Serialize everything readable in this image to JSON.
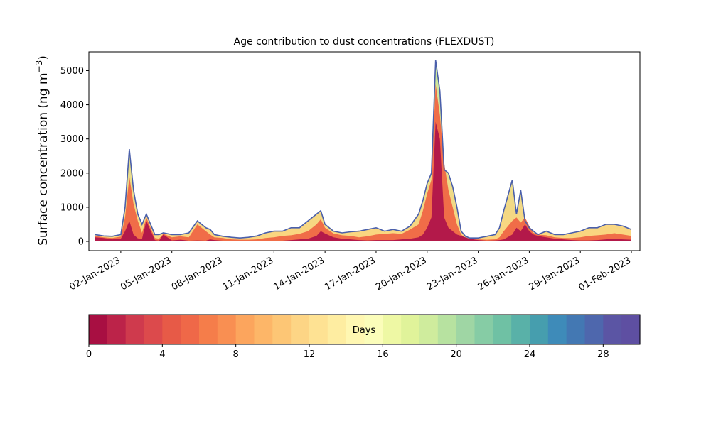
{
  "chart_data": {
    "type": "area",
    "title": "Age contribution to dust concentrations (FLEXDUST)",
    "ylabel_main": "Surface concentration (ng m",
    "ylabel_sup": "−3",
    "ylabel_close": ")",
    "xlabel": "",
    "ylim": [
      -270,
      5550
    ],
    "xlim": [
      "2022-12-31T03:00",
      "2023-02-01T12:00"
    ],
    "yticks": [
      0,
      1000,
      2000,
      3000,
      4000,
      5000
    ],
    "xticks": [
      "2023-01-02",
      "2023-01-05",
      "2023-01-08",
      "2023-01-11",
      "2023-01-14",
      "2023-01-17",
      "2023-01-20",
      "2023-01-23",
      "2023-01-26",
      "2023-01-29",
      "2023-02-01"
    ],
    "xtick_labels": [
      "02-Jan-2023",
      "05-Jan-2023",
      "08-Jan-2023",
      "11-Jan-2023",
      "14-Jan-2023",
      "17-Jan-2023",
      "20-Jan-2023",
      "23-Jan-2023",
      "26-Jan-2023",
      "29-Jan-2023",
      "01-Feb-2023"
    ],
    "stack_note": "stacked contributions by age bin; total shown, 0-4 day ages and 4-14 day ages shown as cumulative layers",
    "x": [
      "2022-12-31T12:00",
      "2023-01-01T00:00",
      "2023-01-01T12:00",
      "2023-01-02T00:00",
      "2023-01-02T06:00",
      "2023-01-02T12:00",
      "2023-01-02T18:00",
      "2023-01-03T00:00",
      "2023-01-03T06:00",
      "2023-01-03T12:00",
      "2023-01-04T00:00",
      "2023-01-04T06:00",
      "2023-01-04T12:00",
      "2023-01-05T00:00",
      "2023-01-05T12:00",
      "2023-01-06T00:00",
      "2023-01-06T12:00",
      "2023-01-07T00:00",
      "2023-01-07T06:00",
      "2023-01-07T12:00",
      "2023-01-08T00:00",
      "2023-01-08T12:00",
      "2023-01-09T00:00",
      "2023-01-09T12:00",
      "2023-01-10T00:00",
      "2023-01-10T12:00",
      "2023-01-11T00:00",
      "2023-01-11T12:00",
      "2023-01-12T00:00",
      "2023-01-12T12:00",
      "2023-01-13T00:00",
      "2023-01-13T12:00",
      "2023-01-13T18:00",
      "2023-01-14T00:00",
      "2023-01-14T12:00",
      "2023-01-15T00:00",
      "2023-01-15T12:00",
      "2023-01-16T00:00",
      "2023-01-16T12:00",
      "2023-01-17T00:00",
      "2023-01-17T12:00",
      "2023-01-18T00:00",
      "2023-01-18T12:00",
      "2023-01-19T00:00",
      "2023-01-19T12:00",
      "2023-01-19T18:00",
      "2023-01-20T00:00",
      "2023-01-20T06:00",
      "2023-01-20T12:00",
      "2023-01-20T18:00",
      "2023-01-21T00:00",
      "2023-01-21T06:00",
      "2023-01-21T12:00",
      "2023-01-21T18:00",
      "2023-01-22T00:00",
      "2023-01-22T06:00",
      "2023-01-22T12:00",
      "2023-01-23T00:00",
      "2023-01-23T12:00",
      "2023-01-24T00:00",
      "2023-01-24T06:00",
      "2023-01-24T12:00",
      "2023-01-25T00:00",
      "2023-01-25T06:00",
      "2023-01-25T12:00",
      "2023-01-25T18:00",
      "2023-01-26T00:00",
      "2023-01-26T06:00",
      "2023-01-26T12:00",
      "2023-01-27T00:00",
      "2023-01-27T12:00",
      "2023-01-28T00:00",
      "2023-01-28T12:00",
      "2023-01-29T00:00",
      "2023-01-29T12:00",
      "2023-01-30T00:00",
      "2023-01-30T12:00",
      "2023-01-31T00:00",
      "2023-01-31T12:00",
      "2023-02-01T00:00"
    ],
    "series": [
      {
        "values": [
          120,
          100,
          60,
          80,
          300,
          600,
          200,
          90,
          80,
          600,
          40,
          20,
          200,
          30,
          50,
          20,
          30,
          20,
          60,
          40,
          20,
          20,
          20,
          20,
          20,
          20,
          20,
          20,
          40,
          60,
          80,
          160,
          300,
          230,
          120,
          80,
          60,
          40,
          30,
          40,
          40,
          40,
          60,
          80,
          120,
          200,
          400,
          700,
          3500,
          3000,
          700,
          400,
          300,
          200,
          160,
          120,
          80,
          40,
          20,
          30,
          40,
          60,
          200,
          400,
          300,
          500,
          300,
          200,
          160,
          120,
          80,
          60,
          40,
          30,
          30,
          40,
          60,
          80,
          60,
          50
        ]
      },
      {
        "values": [
          160,
          120,
          100,
          140,
          700,
          1900,
          1100,
          600,
          250,
          700,
          100,
          80,
          220,
          120,
          150,
          120,
          500,
          300,
          200,
          120,
          100,
          60,
          50,
          50,
          60,
          100,
          120,
          160,
          180,
          220,
          300,
          500,
          650,
          400,
          230,
          180,
          160,
          120,
          150,
          200,
          220,
          240,
          220,
          350,
          500,
          900,
          1400,
          1800,
          4600,
          3700,
          2300,
          1500,
          1000,
          500,
          200,
          100,
          60,
          60,
          50,
          60,
          120,
          300,
          600,
          700,
          550,
          700,
          450,
          250,
          200,
          180,
          120,
          100,
          100,
          120,
          160,
          180,
          200,
          240,
          200,
          160
        ]
      },
      {
        "values": [
          200,
          160,
          150,
          200,
          1000,
          2700,
          1500,
          800,
          500,
          800,
          200,
          200,
          250,
          200,
          200,
          250,
          600,
          400,
          350,
          200,
          150,
          120,
          100,
          120,
          160,
          250,
          300,
          300,
          400,
          400,
          600,
          800,
          900,
          500,
          300,
          250,
          280,
          300,
          350,
          400,
          300,
          350,
          300,
          450,
          800,
          1200,
          1700,
          2000,
          5300,
          4400,
          2100,
          2000,
          1600,
          1000,
          300,
          150,
          100,
          100,
          150,
          200,
          400,
          900,
          1800,
          800,
          1500,
          600,
          400,
          300,
          200,
          300,
          200,
          200,
          250,
          300,
          400,
          400,
          500,
          500,
          450,
          350
        ]
      }
    ],
    "colorbar": {
      "label": "Days",
      "min": 0,
      "max": 30,
      "ticks": [
        0,
        4,
        8,
        12,
        16,
        20,
        24,
        28
      ],
      "colors": [
        "#a80f42",
        "#bc2349",
        "#cf3a4d",
        "#dc4a4c",
        "#e75a47",
        "#ef6848",
        "#f57d4a",
        "#f98f52",
        "#fca55d",
        "#fdb668",
        "#fdc675",
        "#fdd585",
        "#fee293",
        "#feeda1",
        "#fff7b2",
        "#fbfdba",
        "#eef8a4",
        "#e0f39a",
        "#cfec9d",
        "#b7e2a0",
        "#9fd6a4",
        "#86cca5",
        "#6fc1a4",
        "#59b1a8",
        "#469eae",
        "#3e8bb9",
        "#4378b3",
        "#4e67ad",
        "#5b55a4",
        "#5e4fa2"
      ]
    },
    "fill_colors": {
      "low": "#b3194a",
      "mid": "#f06d48",
      "high": "#fcd57f",
      "top_band": "#c8ea9f",
      "outline": "#4a5fab"
    }
  }
}
